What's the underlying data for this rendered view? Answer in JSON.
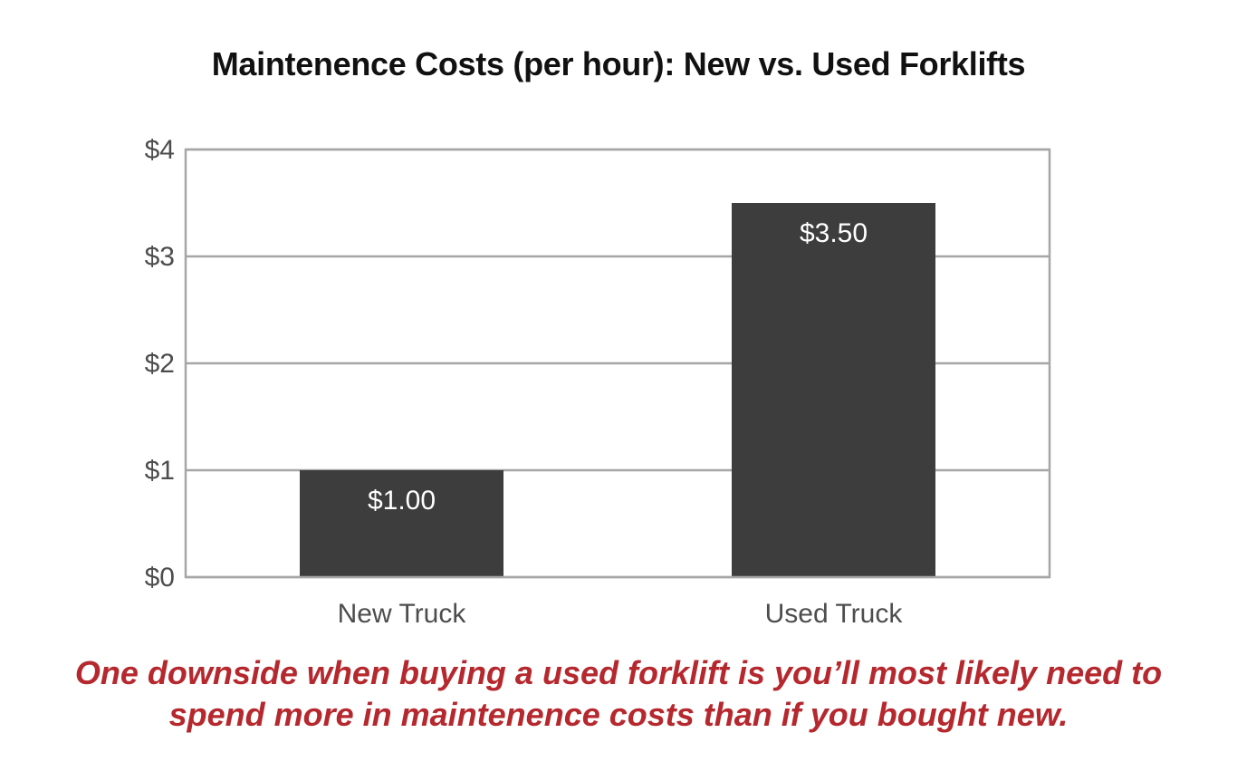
{
  "chart_data": {
    "type": "bar",
    "title": "Maintenence Costs (per hour): New vs. Used Forklifts",
    "categories": [
      "New Truck",
      "Used Truck"
    ],
    "values": [
      1.0,
      3.5
    ],
    "data_labels": [
      "$1.00",
      "$3.50"
    ],
    "y_ticks": [
      0,
      1,
      2,
      3,
      4
    ],
    "y_tick_labels": [
      "$0",
      "$1",
      "$2",
      "$3",
      "$4"
    ],
    "ylim": [
      0,
      4
    ],
    "grid": true,
    "colors": {
      "bar": "#3d3d3d",
      "grid": "#a6a6a6",
      "tick_text": "#4d4d4d",
      "data_label": "#ffffff"
    }
  },
  "caption": {
    "line1": "One downside when buying a used forklift is you’ll most likely need to",
    "line2": "spend more in maintenence costs than if you bought new.",
    "color": "#b5282e"
  }
}
